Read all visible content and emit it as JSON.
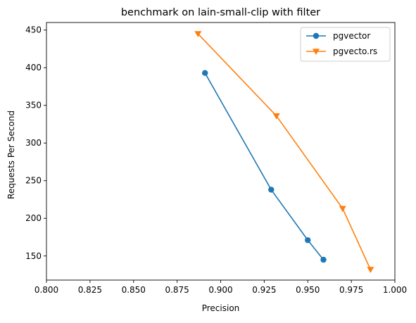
{
  "chart_data": {
    "type": "line",
    "title": "benchmark on lain-small-clip with filter",
    "xlabel": "Precision",
    "ylabel": "Requests Per Second",
    "xlim": [
      0.8,
      1.0
    ],
    "ylim": [
      118,
      460
    ],
    "xticks": [
      "0.800",
      "0.825",
      "0.850",
      "0.875",
      "0.900",
      "0.925",
      "0.950",
      "0.975",
      "1.000"
    ],
    "xtick_values": [
      0.8,
      0.825,
      0.85,
      0.875,
      0.9,
      0.925,
      0.95,
      0.975,
      1.0
    ],
    "yticks": [
      "150",
      "200",
      "250",
      "300",
      "350",
      "400",
      "450"
    ],
    "ytick_values": [
      150,
      200,
      250,
      300,
      350,
      400,
      450
    ],
    "grid": false,
    "legend_position": "top-right",
    "series": [
      {
        "name": "pgvector",
        "color": "#1f77b4",
        "marker": "circle",
        "x": [
          0.891,
          0.929,
          0.95,
          0.959
        ],
        "y": [
          393,
          238,
          171,
          145
        ]
      },
      {
        "name": "pgvecto.rs",
        "color": "#ff7f0e",
        "marker": "triangle-down",
        "x": [
          0.887,
          0.932,
          0.97,
          0.986
        ],
        "y": [
          445,
          336,
          213,
          132
        ]
      }
    ]
  }
}
